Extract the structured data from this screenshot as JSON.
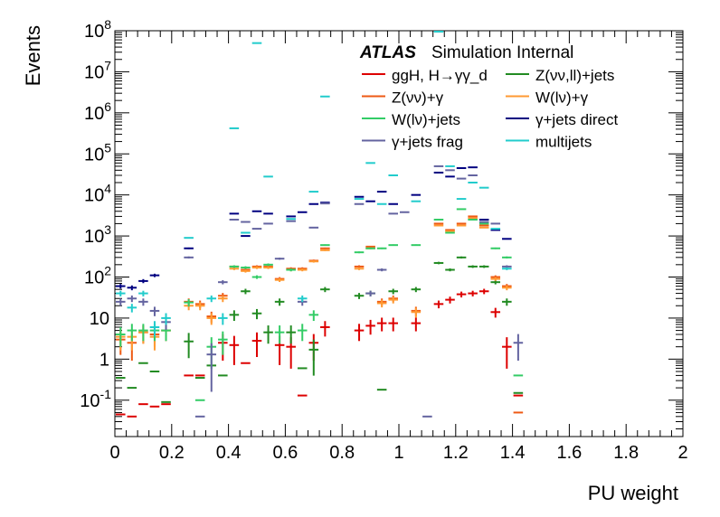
{
  "chart_data": {
    "type": "scatter",
    "xlabel": "PU weight",
    "ylabel": "Events",
    "xlim": [
      0,
      2
    ],
    "ylim": [
      0.013,
      100000000
    ],
    "yscale": "log",
    "legend_placement": "top-right",
    "atlas_label": "ATLAS",
    "atlas_sublabel": "Simulation Internal",
    "x_ticks": [
      "0",
      "0.2",
      "0.4",
      "0.6",
      "0.8",
      "1",
      "1.2",
      "1.4",
      "1.6",
      "1.8",
      "2"
    ],
    "y_ticks": [
      {
        "base": "10",
        "exp": "-1",
        "v": 0.1
      },
      {
        "base": "1",
        "exp": "",
        "v": 1
      },
      {
        "base": "10",
        "exp": "",
        "v": 10
      },
      {
        "base": "10",
        "exp": "2",
        "v": 100
      },
      {
        "base": "10",
        "exp": "3",
        "v": 1000
      },
      {
        "base": "10",
        "exp": "4",
        "v": 10000
      },
      {
        "base": "10",
        "exp": "5",
        "v": 100000
      },
      {
        "base": "10",
        "exp": "6",
        "v": 1000000
      },
      {
        "base": "10",
        "exp": "7",
        "v": 10000000
      },
      {
        "base": "10",
        "exp": "8",
        "v": 100000000
      }
    ],
    "bin_width": 0.04,
    "series": [
      {
        "name": "ggH, H→γγ_d",
        "color": "#dd0000",
        "points": [
          [
            0.02,
            0.045
          ],
          [
            0.06,
            0.04
          ],
          [
            0.1,
            0.08
          ],
          [
            0.14,
            0.07
          ],
          [
            0.18,
            0.08
          ],
          [
            0.26,
            0.4
          ],
          [
            0.3,
            0.4
          ],
          [
            0.38,
            2.5
          ],
          [
            0.42,
            2.2
          ],
          [
            0.46,
            0.8
          ],
          [
            0.5,
            2.8
          ],
          [
            0.58,
            2.2
          ],
          [
            0.62,
            2.0
          ],
          [
            0.66,
            0.13
          ],
          [
            0.7,
            2.5
          ],
          [
            0.74,
            6.0
          ],
          [
            0.86,
            5.0
          ],
          [
            0.9,
            6.5
          ],
          [
            0.94,
            7.5
          ],
          [
            0.98,
            7.5
          ],
          [
            1.06,
            7.5
          ],
          [
            1.14,
            22
          ],
          [
            1.18,
            28
          ],
          [
            1.22,
            38
          ],
          [
            1.26,
            40
          ],
          [
            1.3,
            45
          ],
          [
            1.34,
            14
          ],
          [
            1.38,
            2.0
          ],
          [
            1.42,
            0.13
          ]
        ]
      },
      {
        "name": "Z(νν,ll)+jets",
        "color": "#228b22",
        "points": [
          [
            0.02,
            0.35
          ],
          [
            0.06,
            0.2
          ],
          [
            0.1,
            0.8
          ],
          [
            0.14,
            0.5
          ],
          [
            0.18,
            0.09
          ],
          [
            0.26,
            2.7
          ],
          [
            0.3,
            0.35
          ],
          [
            0.34,
            0.7
          ],
          [
            0.38,
            0.4
          ],
          [
            0.42,
            12
          ],
          [
            0.46,
            45
          ],
          [
            0.5,
            13
          ],
          [
            0.54,
            4.5
          ],
          [
            0.58,
            25
          ],
          [
            0.62,
            4.5
          ],
          [
            0.66,
            0.6
          ],
          [
            0.7,
            1.7
          ],
          [
            0.74,
            50
          ],
          [
            0.86,
            35
          ],
          [
            0.9,
            40
          ],
          [
            0.94,
            0.18
          ],
          [
            0.98,
            45
          ],
          [
            1.06,
            50
          ],
          [
            1.14,
            220
          ],
          [
            1.18,
            150
          ],
          [
            1.22,
            300
          ],
          [
            1.26,
            180
          ],
          [
            1.3,
            180
          ],
          [
            1.34,
            75
          ],
          [
            1.38,
            25
          ],
          [
            1.42,
            0.15
          ]
        ]
      },
      {
        "name": "Z(νν)+γ",
        "color": "#ee5a14",
        "points": [
          [
            0.02,
            3.0
          ],
          [
            0.06,
            2.5
          ],
          [
            0.1,
            4.5
          ],
          [
            0.14,
            4.0
          ],
          [
            0.18,
            5.0
          ],
          [
            0.26,
            25
          ],
          [
            0.3,
            22
          ],
          [
            0.34,
            11
          ],
          [
            0.38,
            35
          ],
          [
            0.42,
            180
          ],
          [
            0.46,
            150
          ],
          [
            0.5,
            180
          ],
          [
            0.54,
            180
          ],
          [
            0.58,
            90
          ],
          [
            0.62,
            160
          ],
          [
            0.66,
            160
          ],
          [
            0.7,
            250
          ],
          [
            0.74,
            500
          ],
          [
            0.86,
            180
          ],
          [
            0.9,
            550
          ],
          [
            0.94,
            25
          ],
          [
            0.98,
            30
          ],
          [
            1.06,
            15
          ],
          [
            1.14,
            2000
          ],
          [
            1.18,
            1400
          ],
          [
            1.22,
            2000
          ],
          [
            1.26,
            3000
          ],
          [
            1.3,
            1800
          ],
          [
            1.34,
            100
          ],
          [
            1.38,
            60
          ],
          [
            1.42,
            0.05
          ]
        ]
      },
      {
        "name": "W(lν)+γ",
        "color": "#ff9a33",
        "points": [
          [
            0.02,
            3.5
          ],
          [
            0.06,
            3.5
          ],
          [
            0.1,
            4.5
          ],
          [
            0.14,
            3.5
          ],
          [
            0.18,
            5.0
          ],
          [
            0.26,
            20
          ],
          [
            0.3,
            20
          ],
          [
            0.34,
            10
          ],
          [
            0.38,
            30
          ],
          [
            0.42,
            160
          ],
          [
            0.46,
            140
          ],
          [
            0.5,
            170
          ],
          [
            0.54,
            170
          ],
          [
            0.58,
            85
          ],
          [
            0.62,
            150
          ],
          [
            0.66,
            150
          ],
          [
            0.7,
            240
          ],
          [
            0.74,
            450
          ],
          [
            0.86,
            160
          ],
          [
            0.9,
            500
          ],
          [
            0.94,
            23
          ],
          [
            0.98,
            28
          ],
          [
            1.06,
            14
          ],
          [
            1.14,
            1800
          ],
          [
            1.18,
            1300
          ],
          [
            1.22,
            1800
          ],
          [
            1.26,
            2700
          ],
          [
            1.3,
            1600
          ],
          [
            1.34,
            90
          ],
          [
            1.38,
            55
          ]
        ]
      },
      {
        "name": "W(lν)+jets",
        "color": "#33cc66",
        "points": [
          [
            0.02,
            4
          ],
          [
            0.06,
            5
          ],
          [
            0.1,
            5
          ],
          [
            0.14,
            5
          ],
          [
            0.18,
            5
          ],
          [
            0.26,
            24
          ],
          [
            0.3,
            0.1
          ],
          [
            0.34,
            2
          ],
          [
            0.38,
            3
          ],
          [
            0.42,
            180
          ],
          [
            0.46,
            170
          ],
          [
            0.5,
            100
          ],
          [
            0.54,
            200
          ],
          [
            0.58,
            4.5
          ],
          [
            0.62,
            150
          ],
          [
            0.66,
            5
          ],
          [
            0.7,
            12
          ],
          [
            0.74,
            600
          ],
          [
            0.86,
            400
          ],
          [
            0.9,
            500
          ],
          [
            0.94,
            500
          ],
          [
            0.98,
            600
          ],
          [
            1.06,
            600
          ],
          [
            1.14,
            2500
          ],
          [
            1.18,
            1200
          ],
          [
            1.22,
            4500
          ],
          [
            1.26,
            2500
          ],
          [
            1.3,
            2000
          ],
          [
            1.34,
            500
          ],
          [
            1.38,
            300
          ],
          [
            1.42,
            0.4
          ]
        ]
      },
      {
        "name": "γ+jets direct",
        "color": "#000080",
        "points": [
          [
            0.02,
            60
          ],
          [
            0.06,
            55
          ],
          [
            0.1,
            80
          ],
          [
            0.14,
            110
          ],
          [
            0.26,
            500
          ],
          [
            0.42,
            3500
          ],
          [
            0.46,
            1000
          ],
          [
            0.5,
            4000
          ],
          [
            0.54,
            3500
          ],
          [
            0.62,
            3000
          ],
          [
            0.66,
            3800
          ],
          [
            0.7,
            6000
          ],
          [
            0.74,
            6500
          ],
          [
            0.86,
            9000
          ],
          [
            0.9,
            7000
          ],
          [
            0.94,
            12000
          ],
          [
            0.98,
            6000
          ],
          [
            1.06,
            10000
          ],
          [
            1.14,
            35000
          ],
          [
            1.18,
            28000
          ],
          [
            1.22,
            45000
          ],
          [
            1.26,
            47000
          ],
          [
            1.3,
            2500
          ],
          [
            1.34,
            1400
          ],
          [
            1.38,
            850
          ]
        ]
      },
      {
        "name": "γ+jets frag",
        "color": "#6464a0",
        "points": [
          [
            0.02,
            25
          ],
          [
            0.06,
            30
          ],
          [
            0.1,
            25
          ],
          [
            0.14,
            15
          ],
          [
            0.18,
            8
          ],
          [
            0.26,
            300
          ],
          [
            0.3,
            0.04
          ],
          [
            0.34,
            1.3
          ],
          [
            0.38,
            75
          ],
          [
            0.42,
            2500
          ],
          [
            0.46,
            2200
          ],
          [
            0.5,
            1500
          ],
          [
            0.54,
            2000
          ],
          [
            0.58,
            280
          ],
          [
            0.62,
            2300
          ],
          [
            0.66,
            25
          ],
          [
            0.7,
            1600
          ],
          [
            0.74,
            6200
          ],
          [
            0.86,
            6000
          ],
          [
            0.9,
            40
          ],
          [
            0.94,
            150
          ],
          [
            0.98,
            3500
          ],
          [
            1.02,
            3800
          ],
          [
            1.1,
            0.04
          ],
          [
            1.14,
            50000
          ],
          [
            1.18,
            40000
          ],
          [
            1.22,
            25000
          ],
          [
            1.26,
            30000
          ],
          [
            1.3,
            2200
          ],
          [
            1.34,
            2000
          ],
          [
            1.38,
            180
          ],
          [
            1.42,
            2.5
          ]
        ]
      },
      {
        "name": "multijets",
        "color": "#22cccc",
        "points": [
          [
            0.02,
            40
          ],
          [
            0.06,
            18
          ],
          [
            0.1,
            40
          ],
          [
            0.14,
            6
          ],
          [
            0.18,
            10
          ],
          [
            0.26,
            900
          ],
          [
            0.34,
            30
          ],
          [
            0.38,
            10
          ],
          [
            0.42,
            420000
          ],
          [
            0.46,
            1200
          ],
          [
            0.5,
            50000000
          ],
          [
            0.54,
            28000
          ],
          [
            0.62,
            2600
          ],
          [
            0.66,
            30
          ],
          [
            0.7,
            12000
          ],
          [
            0.74,
            2500000
          ],
          [
            0.86,
            8000
          ],
          [
            0.9,
            60000
          ],
          [
            0.94,
            6000
          ],
          [
            0.98,
            30000
          ],
          [
            1.06,
            7000
          ],
          [
            1.14,
            95000000
          ],
          [
            1.18,
            50000
          ],
          [
            1.22,
            8000
          ],
          [
            1.26,
            20000
          ],
          [
            1.3,
            15000
          ],
          [
            1.34,
            1500
          ],
          [
            1.38,
            160
          ]
        ]
      }
    ]
  }
}
